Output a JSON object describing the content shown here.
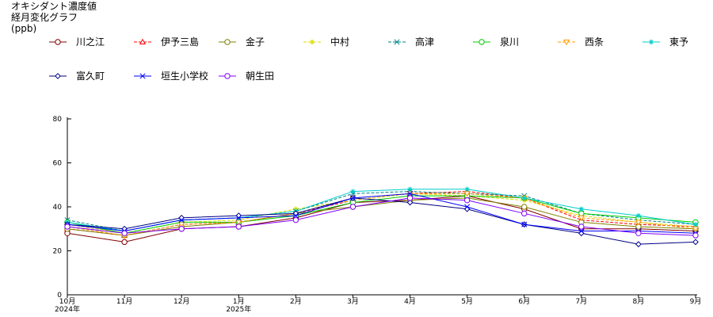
{
  "chart_data": {
    "type": "line",
    "title_lines": [
      "オキシダント濃度値",
      "経月変化グラフ"
    ],
    "unit": "(ppb)",
    "ylim": [
      0,
      80
    ],
    "yticks": [
      0,
      20,
      40,
      60,
      80
    ],
    "categories": [
      "10月",
      "11月",
      "12月",
      "1月",
      "2月",
      "3月",
      "4月",
      "5月",
      "6月",
      "7月",
      "8月",
      "9月"
    ],
    "year_labels": [
      {
        "index": 0,
        "label": "2024年"
      },
      {
        "index": 3,
        "label": "2025年"
      }
    ],
    "legend_position": "top",
    "series": [
      {
        "name": "川之江",
        "color": "#800000",
        "dash": "",
        "marker": "circle",
        "values": [
          28,
          24,
          30,
          31,
          35,
          42,
          43,
          45,
          39,
          30,
          30,
          29
        ]
      },
      {
        "name": "伊予三島",
        "color": "#ff0000",
        "dash": "4,2",
        "marker": "triangle",
        "values": [
          30,
          27,
          32,
          33,
          37,
          43,
          46,
          47,
          44,
          34,
          32,
          31
        ]
      },
      {
        "name": "金子",
        "color": "#808000",
        "dash": "",
        "marker": "circle",
        "values": [
          30,
          27,
          31,
          33,
          37,
          40,
          43,
          44,
          40,
          33,
          31,
          30
        ]
      },
      {
        "name": "中村",
        "color": "#dddd00",
        "dash": "4,2",
        "marker": "star",
        "values": [
          32,
          28,
          33,
          34,
          39,
          43,
          46,
          45,
          43,
          36,
          33,
          31
        ]
      },
      {
        "name": "高津",
        "color": "#008080",
        "dash": "4,2",
        "marker": "x",
        "values": [
          34,
          29,
          34,
          35,
          38,
          46,
          47,
          46,
          45,
          37,
          34,
          32
        ]
      },
      {
        "name": "泉川",
        "color": "#00cc00",
        "dash": "",
        "marker": "circle",
        "values": [
          33,
          28,
          33,
          33,
          36,
          42,
          45,
          45,
          44,
          37,
          35,
          33
        ]
      },
      {
        "name": "西条",
        "color": "#ff9900",
        "dash": "4,2",
        "marker": "triangle-down",
        "values": [
          31,
          27,
          32,
          33,
          37,
          44,
          46,
          46,
          44,
          35,
          33,
          30
        ]
      },
      {
        "name": "東予",
        "color": "#00cccc",
        "dash": "",
        "marker": "star",
        "values": [
          33,
          29,
          34,
          35,
          38,
          47,
          48,
          48,
          44,
          39,
          36,
          32
        ]
      },
      {
        "name": "富久町",
        "color": "#000080",
        "dash": "",
        "marker": "diamond",
        "values": [
          32,
          30,
          35,
          36,
          37,
          44,
          42,
          39,
          32,
          28,
          23,
          24
        ]
      },
      {
        "name": "垣生小学校",
        "color": "#0000ff",
        "dash": "",
        "marker": "x",
        "values": [
          32,
          29,
          34,
          35,
          36,
          44,
          46,
          40,
          32,
          29,
          29,
          28
        ]
      },
      {
        "name": "朝生田",
        "color": "#8000ff",
        "dash": "",
        "marker": "circle",
        "values": [
          31,
          28,
          30,
          31,
          34,
          40,
          44,
          43,
          37,
          31,
          28,
          27
        ]
      }
    ]
  }
}
